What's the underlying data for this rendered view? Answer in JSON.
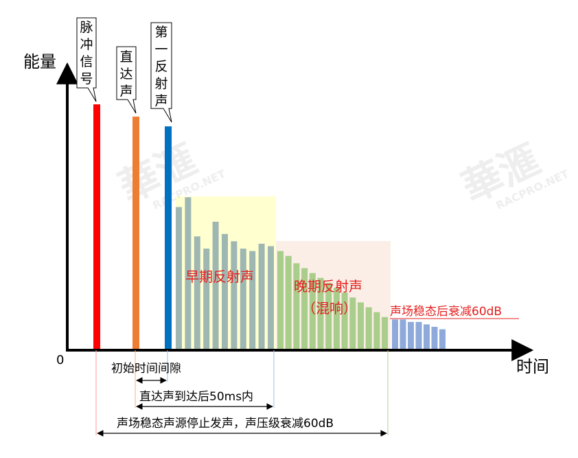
{
  "axes": {
    "y_label": "能量",
    "x_label": "时间",
    "origin": "0"
  },
  "callouts": {
    "pulse": [
      "脉",
      "冲",
      "信",
      "号"
    ],
    "direct": [
      "直",
      "达",
      "声"
    ],
    "first_reflection": [
      "第",
      "一",
      "反",
      "射",
      "声"
    ]
  },
  "regions": {
    "early": "早期反射声",
    "late_line1": "晚期反射声",
    "late_line2": "（混响）",
    "steady": "声场稳态后衰减60dB"
  },
  "intervals": {
    "initial_gap": "初始时间间隙",
    "within_50ms": "直达声到达后50ms内",
    "decay_60db": "声场稳态声源停止发声，声压级衰减60dB"
  },
  "watermark": {
    "chinese": "華滙",
    "latin": "RACPRO.NET"
  },
  "colors": {
    "pulse": "#ff0000",
    "direct": "#ed7d31",
    "first_reflection": "#0070c0",
    "early_bars": "#9fb7b3",
    "late_bars": "#a9cd8a",
    "steady_bars": "#8eaadb",
    "early_zone": "#ffffd0",
    "late_zone": "#fbeee6",
    "label_red": "#e41e1e"
  },
  "chart_data": {
    "type": "bar",
    "description_units": "relative energy (axis unlabeled)",
    "main_pulses": [
      {
        "name": "脉冲信号",
        "value": 1.0
      },
      {
        "name": "直达声",
        "value": 0.95
      },
      {
        "name": "第一反射声",
        "value": 0.91
      }
    ],
    "early_reflections": [
      0.58,
      0.62,
      0.46,
      0.41,
      0.52,
      0.47,
      0.44,
      0.41,
      0.4,
      0.43,
      0.42
    ],
    "late_reflections": [
      0.4,
      0.38,
      0.35,
      0.33,
      0.31,
      0.29,
      0.27,
      0.25,
      0.23,
      0.21,
      0.19,
      0.17,
      0.15,
      0.13
    ],
    "steady_decay": [
      0.12,
      0.12,
      0.11,
      0.11,
      0.1,
      0.09,
      0.08
    ]
  }
}
